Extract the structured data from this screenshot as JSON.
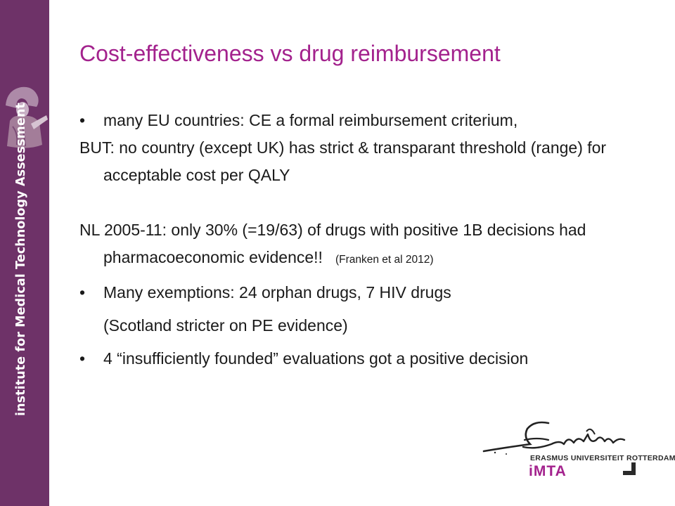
{
  "slide": {
    "title": "Cost-effectiveness  vs drug reimbursement",
    "paragraphs": [
      {
        "bullet": "•",
        "text": "many EU countries: CE a formal reimbursement criterium,"
      },
      {
        "text": "BUT: no country (except UK) has strict & transparant threshold (range) for acceptable cost per QALY"
      },
      {
        "text": "NL 2005-11: only 30% (=19/63) of drugs with positive 1B decisions had pharmacoeconomic evidence!!",
        "cite": "(Franken et al 2012)"
      },
      {
        "bullet": "•",
        "text": "Many exemptions: 24 orphan drugs, 7 HIV drugs"
      },
      {
        "text": "(Scotland stricter on PE evidence)"
      },
      {
        "bullet": "•",
        "text": "4 “insufficiently founded” evaluations got a positive decision"
      }
    ]
  },
  "sidebar": {
    "vertical_text": "institute for Medical Technology Assessment",
    "crest_icon": "scholar-crest-icon",
    "color": "#6e3268"
  },
  "logo": {
    "university": "ERASMUS UNIVERSITEIT ROTTERDAM",
    "brand": "iMTA",
    "signature_icon": "erasmus-signature-icon",
    "accent": "#a3228d"
  }
}
